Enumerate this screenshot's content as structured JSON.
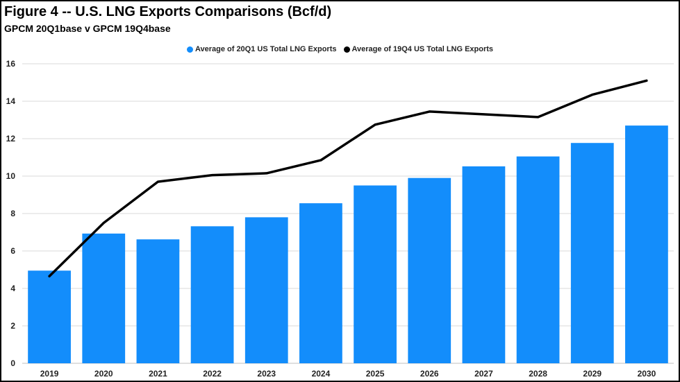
{
  "chart_data": {
    "type": "bar",
    "title": "Figure 4 -- U.S. LNG Exports Comparisons (Bcf/d)",
    "subtitle": "GPCM 20Q1base v GPCM 19Q4base",
    "categories": [
      "2019",
      "2020",
      "2021",
      "2022",
      "2023",
      "2024",
      "2025",
      "2026",
      "2027",
      "2028",
      "2029",
      "2030"
    ],
    "series": [
      {
        "name": "Average of 20Q1 US Total LNG Exports",
        "kind": "bar",
        "color": "#138dfb",
        "values": [
          4.95,
          6.93,
          6.62,
          7.32,
          7.8,
          8.55,
          9.5,
          9.9,
          10.52,
          11.05,
          11.77,
          12.7
        ]
      },
      {
        "name": "Average of 19Q4 US Total LNG Exports",
        "kind": "line",
        "color": "#000000",
        "values": [
          4.65,
          7.5,
          9.7,
          10.05,
          10.15,
          10.85,
          12.75,
          13.45,
          13.3,
          13.15,
          14.35,
          15.1
        ]
      }
    ],
    "ylim": [
      0,
      16
    ],
    "yticks": [
      0,
      2,
      4,
      6,
      8,
      10,
      12,
      14,
      16
    ],
    "legend": "top-center",
    "grid": true
  }
}
